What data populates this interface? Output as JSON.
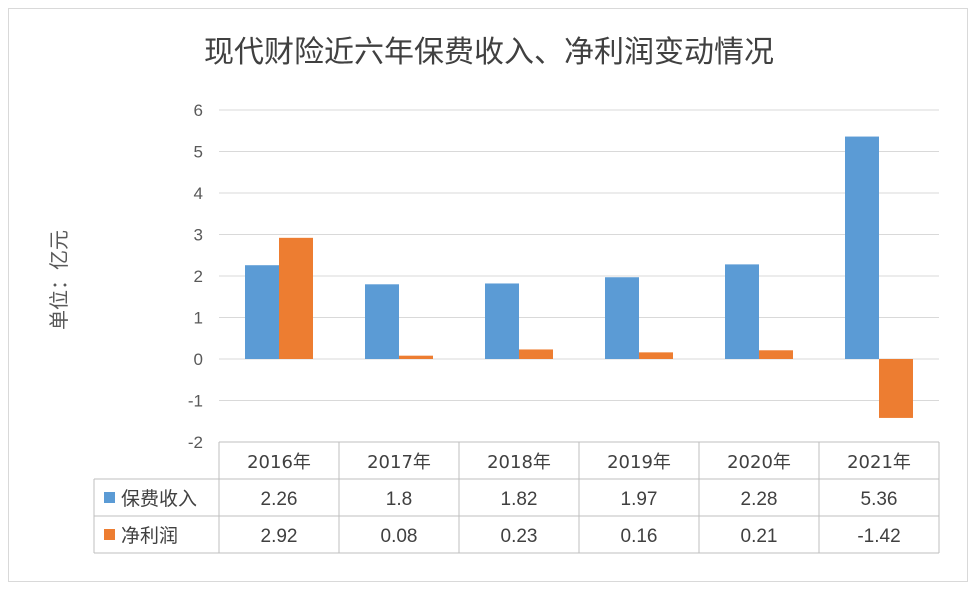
{
  "chart_data": {
    "type": "bar",
    "title": "现代财险近六年保费收入、净利润变动情况",
    "ylabel": "单位：亿元",
    "xlabel": "",
    "categories": [
      "2016年",
      "2017年",
      "2018年",
      "2019年",
      "2020年",
      "2021年"
    ],
    "series": [
      {
        "name": "保费收入",
        "color": "#5b9bd5",
        "values": [
          2.26,
          1.8,
          1.82,
          1.97,
          2.28,
          5.36
        ]
      },
      {
        "name": "净利润",
        "color": "#ed7d31",
        "values": [
          2.92,
          0.08,
          0.23,
          0.16,
          0.21,
          -1.42
        ]
      }
    ],
    "ylim": [
      -2,
      6
    ],
    "yticks": [
      "-2",
      "-1",
      "0",
      "1",
      "2",
      "3",
      "4",
      "5",
      "6"
    ],
    "table_values": [
      [
        "2.26",
        "1.8",
        "1.82",
        "1.97",
        "2.28",
        "5.36"
      ],
      [
        "2.92",
        "0.08",
        "0.23",
        "0.16",
        "0.21",
        "-1.42"
      ]
    ],
    "grid": true,
    "legend": "data-table"
  }
}
